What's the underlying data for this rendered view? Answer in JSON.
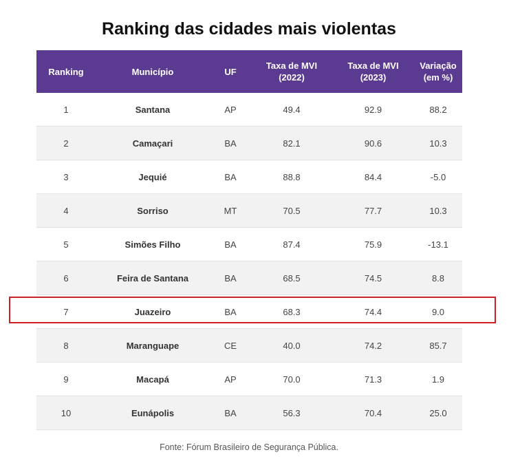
{
  "chart_data": {
    "type": "table",
    "title": "Ranking das cidades mais violentas",
    "columns": [
      "Ranking",
      "Município",
      "UF",
      "Taxa de MVI\n(2022)",
      "Taxa de MVI\n(2023)",
      "Variação\n(em %)"
    ],
    "rows": [
      [
        "1",
        "Santana",
        "AP",
        "49.4",
        "92.9",
        "88.2"
      ],
      [
        "2",
        "Camaçari",
        "BA",
        "82.1",
        "90.6",
        "10.3"
      ],
      [
        "3",
        "Jequié",
        "BA",
        "88.8",
        "84.4",
        "-5.0"
      ],
      [
        "4",
        "Sorriso",
        "MT",
        "70.5",
        "77.7",
        "10.3"
      ],
      [
        "5",
        "Simões Filho",
        "BA",
        "87.4",
        "75.9",
        "-13.1"
      ],
      [
        "6",
        "Feira de Santana",
        "BA",
        "68.5",
        "74.5",
        "8.8"
      ],
      [
        "7",
        "Juazeiro",
        "BA",
        "68.3",
        "74.4",
        "9.0"
      ],
      [
        "8",
        "Maranguape",
        "CE",
        "40.0",
        "74.2",
        "85.7"
      ],
      [
        "9",
        "Macapá",
        "AP",
        "70.0",
        "71.3",
        "1.9"
      ],
      [
        "10",
        "Eunápolis",
        "BA",
        "56.3",
        "70.4",
        "25.0"
      ]
    ],
    "highlighted_row": 7,
    "source": "Fonte: Fórum Brasileiro de Segurança Pública."
  },
  "colors": {
    "header_bg": "#5b3a91",
    "highlight_border": "#cc1f27",
    "row_alt": "#f2f2f2"
  }
}
